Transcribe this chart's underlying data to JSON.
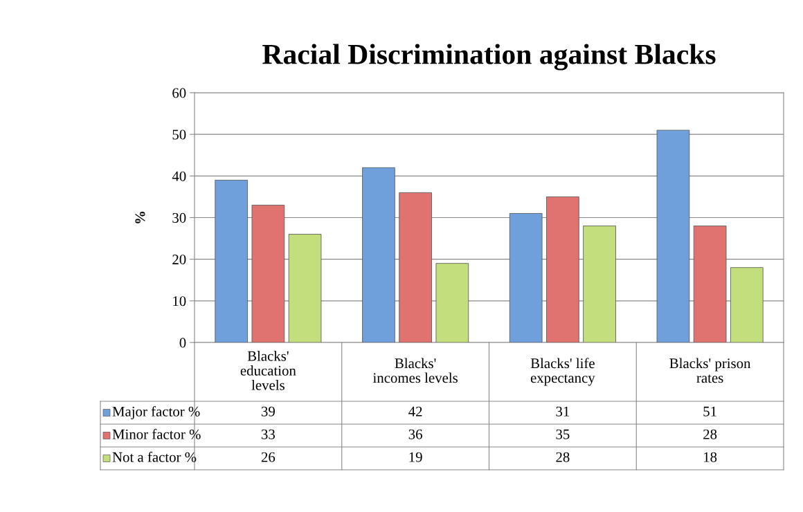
{
  "chart_data": {
    "type": "bar",
    "title": "Racial Discrimination against Blacks",
    "ylabel": "%",
    "categories": [
      "Blacks'\neducation\nlevels",
      "Blacks'\nincomes levels",
      "Blacks' life\nexpectancy",
      "Blacks' prison\nrates"
    ],
    "series": [
      {
        "name": "Major factor %",
        "color": "#6fa0dc",
        "values": [
          39,
          42,
          31,
          51
        ]
      },
      {
        "name": "Minor factor %",
        "color": "#e07370",
        "values": [
          33,
          36,
          35,
          28
        ]
      },
      {
        "name": "Not a factor %",
        "color": "#c3de7c",
        "values": [
          26,
          19,
          28,
          18
        ]
      }
    ],
    "ylim": [
      0,
      60
    ],
    "yticks": [
      0,
      10,
      20,
      30,
      40,
      50,
      60
    ],
    "grid": "y",
    "data_labels": true,
    "legend": "bottom left"
  }
}
